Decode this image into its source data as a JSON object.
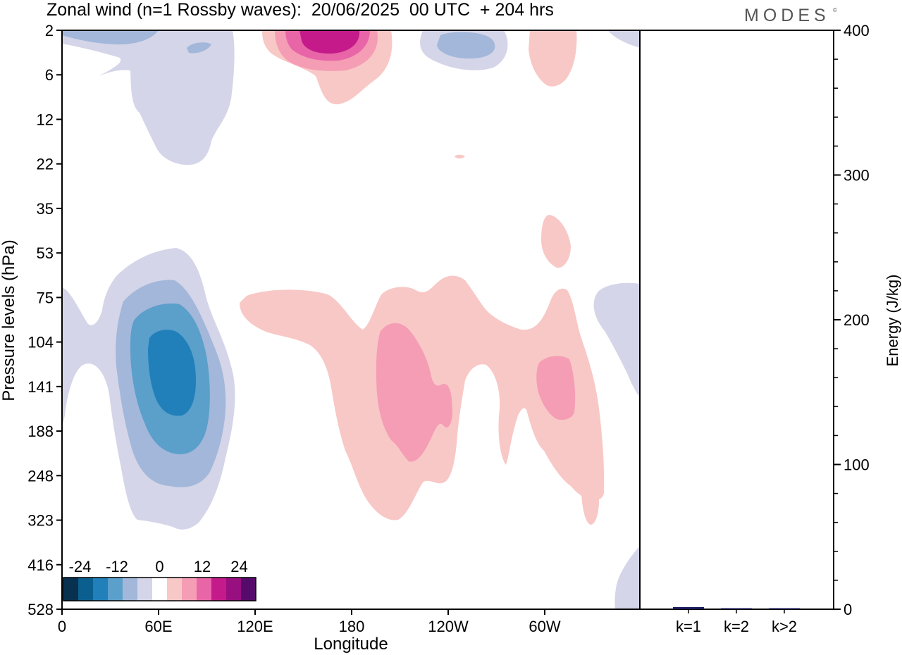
{
  "title": "Zonal wind (n=1 Rossby waves):  20/06/2025  00 UTC  + 204 hrs",
  "brand": "MODES",
  "brand_mark": "©",
  "chart_data": [
    {
      "type": "heatmap",
      "title": "Zonal wind (n=1 Rossby waves):  20/06/2025  00 UTC  + 204 hrs",
      "xlabel": "Longitude",
      "ylabel": "Pressure levels (hPa)",
      "x_ticks": [
        "0",
        "60E",
        "120E",
        "180",
        "120W",
        "60W"
      ],
      "y_ticks": [
        "2",
        "6",
        "12",
        "22",
        "35",
        "53",
        "75",
        "104",
        "141",
        "188",
        "248",
        "323",
        "416",
        "528"
      ],
      "xlim": [
        0,
        360
      ],
      "ylim": [
        528,
        2
      ],
      "colorbar": {
        "ticks": [
          "-24",
          "-12",
          "0",
          "12",
          "24"
        ],
        "levels": [
          -30,
          -24,
          -18,
          -12,
          -6,
          -3,
          3,
          6,
          12,
          18,
          24,
          30
        ],
        "colors": [
          "#08304f",
          "#0b5f8f",
          "#2180b9",
          "#5b9fcb",
          "#a2b7d9",
          "#d4d5e8",
          "#ffffff",
          "#f8c8c6",
          "#f59db5",
          "#e866a8",
          "#c51b8a",
          "#980f7f",
          "#560a6b"
        ]
      },
      "features": [
        {
          "sign": "negative",
          "level": -3,
          "lon": 45,
          "pressure": 10
        },
        {
          "sign": "negative",
          "level": -6,
          "lon": 85,
          "pressure": 3
        },
        {
          "sign": "negative",
          "level": -6,
          "lon": 255,
          "pressure": 3
        },
        {
          "sign": "positive",
          "level": 3,
          "lon": 170,
          "pressure": 4
        },
        {
          "sign": "positive",
          "level": 18,
          "lon": 170,
          "pressure": 2
        },
        {
          "sign": "positive",
          "level": 3,
          "lon": 305,
          "pressure": 4
        },
        {
          "sign": "negative",
          "level": -18,
          "lon": 70,
          "pressure": 141
        },
        {
          "sign": "positive",
          "level": 3,
          "lon": 210,
          "pressure": 150
        },
        {
          "sign": "positive",
          "level": 6,
          "lon": 215,
          "pressure": 150
        },
        {
          "sign": "positive",
          "level": 6,
          "lon": 310,
          "pressure": 141
        },
        {
          "sign": "negative",
          "level": -3,
          "lon": 355,
          "pressure": 130
        }
      ]
    },
    {
      "type": "bar",
      "categories": [
        "k=1",
        "k=2",
        "k>2"
      ],
      "values": [
        1.5,
        0.4,
        0.6
      ],
      "ylabel": "Energy (J/kg)",
      "y_ticks": [
        "0",
        "100",
        "200",
        "300",
        "400"
      ],
      "ylim": [
        0,
        400
      ],
      "bar_color": "#1a1a5e"
    }
  ]
}
